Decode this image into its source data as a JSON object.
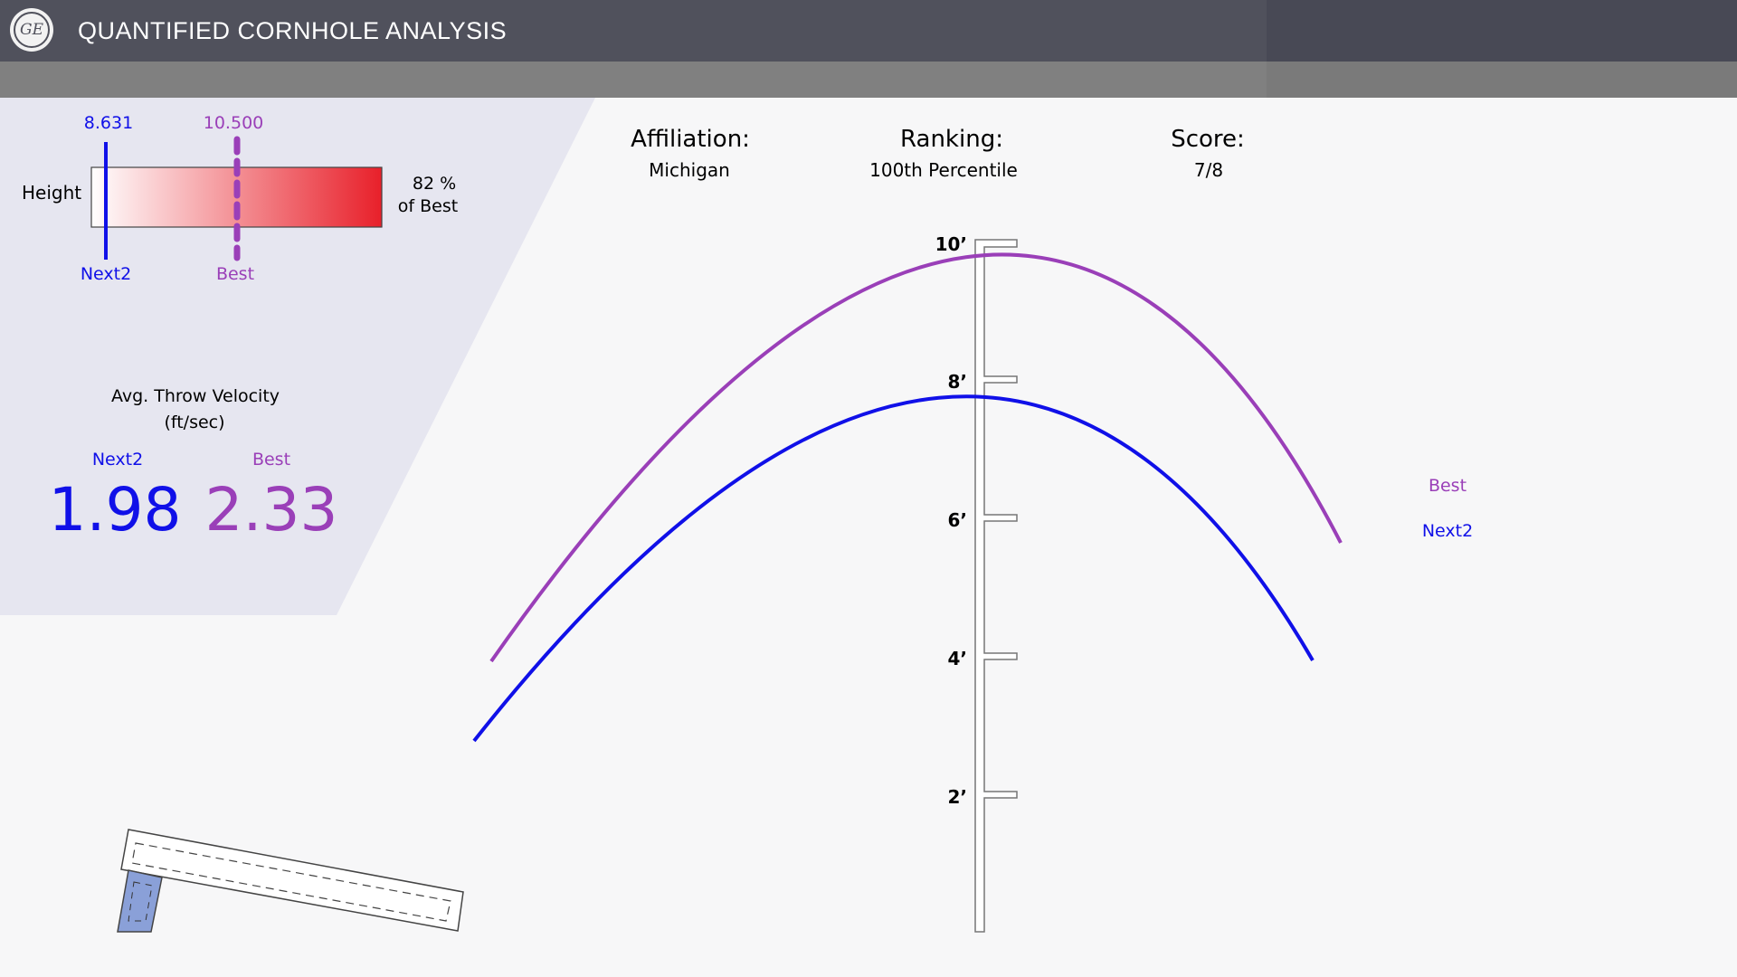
{
  "header": {
    "logo_text": "GE",
    "title": "QUANTIFIED CORNHOLE ANALYSIS"
  },
  "height_meter": {
    "label": "Height",
    "next2_value": "8.631",
    "best_value": "10.500",
    "next2_label": "Next2",
    "best_label": "Best",
    "percent_text": "82 %",
    "percent_sub": "of Best",
    "percent_of_best": 82
  },
  "velocity": {
    "title": "Avg. Throw Velocity",
    "units": "(ft/sec)",
    "next2_label": "Next2",
    "best_label": "Best",
    "next2_value": "1.98",
    "best_value": "2.33"
  },
  "info": {
    "affiliation_label": "Affiliation:",
    "affiliation_value": "Michigan",
    "ranking_label": "Ranking:",
    "ranking_value": "100th Percentile",
    "score_label": "Score:",
    "score_value": "7/8"
  },
  "legend": {
    "best": "Best",
    "next2": "Next2"
  },
  "colors": {
    "next2": "#1010e8",
    "best": "#9a3fb8",
    "header": "#50515c",
    "subbar": "#808080",
    "panel": "#e6e6f0",
    "meter_gradient_end": "#e8202a"
  },
  "chart_data": {
    "type": "line",
    "ylabel": "",
    "y_ticks": [
      "2’",
      "4’",
      "6’",
      "8’",
      "10’"
    ],
    "ylim": [
      0,
      10
    ],
    "series": [
      {
        "name": "Best",
        "peak_height_ft": 10.5
      },
      {
        "name": "Next2",
        "peak_height_ft": 8.631
      }
    ]
  }
}
